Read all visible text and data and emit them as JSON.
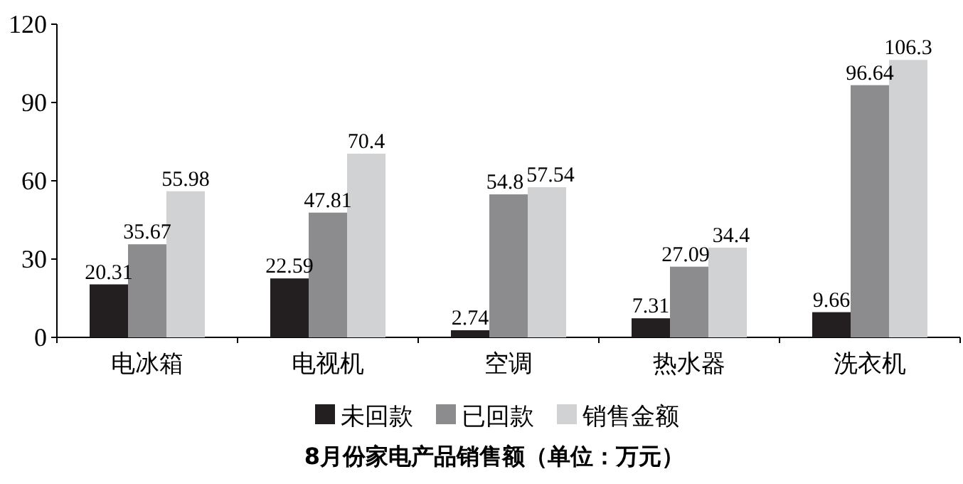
{
  "chart_data": {
    "type": "bar",
    "title": "8月份家电产品销售额（单位：万元）",
    "categories": [
      "电冰箱",
      "电视机",
      "空调",
      "热水器",
      "洗衣机"
    ],
    "series": [
      {
        "name": "未回款",
        "color": "#231f20",
        "values": [
          20.31,
          22.59,
          2.74,
          7.31,
          9.66
        ]
      },
      {
        "name": "已回款",
        "color": "#8c8c8e",
        "values": [
          35.67,
          47.81,
          54.8,
          27.09,
          96.64
        ]
      },
      {
        "name": "销售金额",
        "color": "#d1d2d4",
        "values": [
          55.98,
          70.4,
          57.54,
          34.4,
          106.3
        ]
      }
    ],
    "ylim": [
      0,
      120
    ],
    "yticks": [
      0,
      30,
      60,
      90,
      120
    ],
    "data_labels": true,
    "legend": "bottom",
    "grid": false
  }
}
